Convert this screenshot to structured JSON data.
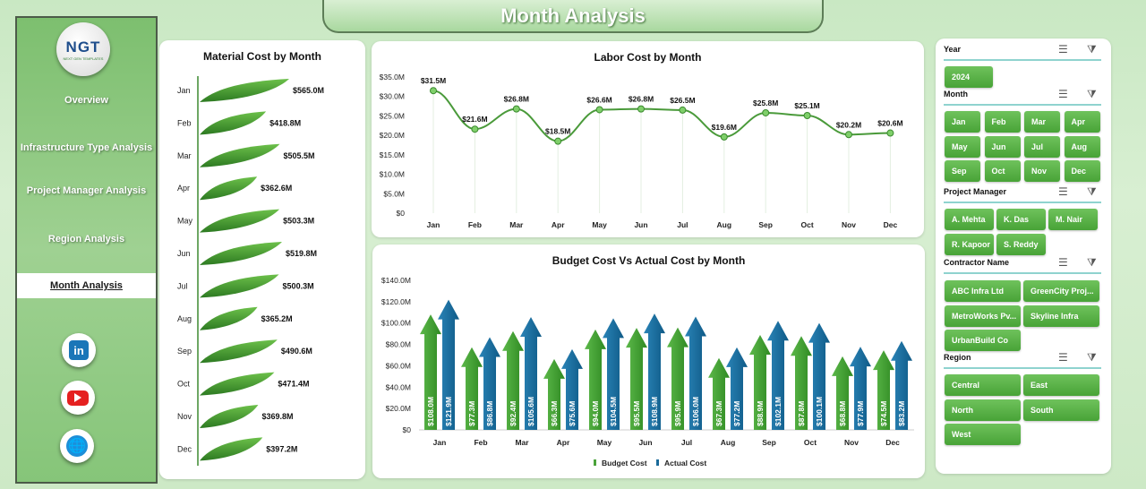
{
  "title": "Month Analysis",
  "logo": {
    "text": "NGT",
    "subtext": "NEXT GEN TEMPLATES"
  },
  "nav": [
    {
      "label": "Overview"
    },
    {
      "label": "Infrastructure Type Analysis"
    },
    {
      "label": "Project Manager Analysis"
    },
    {
      "label": "Region Analysis"
    },
    {
      "label": "Month Analysis",
      "active": true
    }
  ],
  "social": [
    "linkedin-icon",
    "youtube-icon",
    "website-icon"
  ],
  "colors": {
    "green": "#4aa33a",
    "blue": "#1a6a9a",
    "leaf": "#3d9a2e"
  },
  "chart_data": [
    {
      "type": "bar",
      "title": "Material Cost by Month",
      "categories": [
        "Jan",
        "Feb",
        "Mar",
        "Apr",
        "May",
        "Jun",
        "Jul",
        "Aug",
        "Sep",
        "Oct",
        "Nov",
        "Dec"
      ],
      "values": [
        565.0,
        418.8,
        505.5,
        362.6,
        503.3,
        519.8,
        500.3,
        365.2,
        490.6,
        471.4,
        369.8,
        397.2
      ],
      "labels": [
        "$565.0M",
        "$418.8M",
        "$505.5M",
        "$362.6M",
        "$503.3M",
        "$519.8M",
        "$500.3M",
        "$365.2M",
        "$490.6M",
        "$471.4M",
        "$369.8M",
        "$397.2M"
      ],
      "unit": "$M"
    },
    {
      "type": "line",
      "title": "Labor Cost by Month",
      "categories": [
        "Jan",
        "Feb",
        "Mar",
        "Apr",
        "May",
        "Jun",
        "Jul",
        "Aug",
        "Sep",
        "Oct",
        "Nov",
        "Dec"
      ],
      "values": [
        31.5,
        21.6,
        26.8,
        18.5,
        26.6,
        26.8,
        26.5,
        19.6,
        25.8,
        25.1,
        20.2,
        20.6
      ],
      "labels": [
        "$31.5M",
        "$21.6M",
        "$26.8M",
        "$18.5M",
        "$26.6M",
        "$26.8M",
        "$26.5M",
        "$19.6M",
        "$25.8M",
        "$25.1M",
        "$20.2M",
        "$20.6M"
      ],
      "ylim": [
        0,
        35
      ],
      "yticks": [
        "$0",
        "$5.0M",
        "$10.0M",
        "$15.0M",
        "$20.0M",
        "$25.0M",
        "$30.0M",
        "$35.0M"
      ]
    },
    {
      "type": "bar",
      "title": "Budget Cost Vs Actual Cost by Month",
      "categories": [
        "Jan",
        "Feb",
        "Mar",
        "Apr",
        "May",
        "Jun",
        "Jul",
        "Aug",
        "Sep",
        "Oct",
        "Nov",
        "Dec"
      ],
      "ylim": [
        0,
        140
      ],
      "yticks": [
        "$0",
        "$20.0M",
        "$40.0M",
        "$60.0M",
        "$80.0M",
        "$100.0M",
        "$120.0M",
        "$140.0M"
      ],
      "series": [
        {
          "name": "Budget Cost",
          "values": [
            108.0,
            77.3,
            92.4,
            66.3,
            94.0,
            95.5,
            95.9,
            67.3,
            88.9,
            87.8,
            68.8,
            74.5
          ],
          "labels": [
            "$108.0M",
            "$77.3M",
            "$92.4M",
            "$66.3M",
            "$94.0M",
            "$95.5M",
            "$95.9M",
            "$67.3M",
            "$88.9M",
            "$87.8M",
            "$68.8M",
            "$74.5M"
          ]
        },
        {
          "name": "Actual Cost",
          "values": [
            121.9,
            86.8,
            105.6,
            75.6,
            104.5,
            108.9,
            106.0,
            77.2,
            102.1,
            100.1,
            77.9,
            83.2
          ],
          "labels": [
            "$121.9M",
            "$86.8M",
            "$105.6M",
            "$75.6M",
            "$104.5M",
            "$108.9M",
            "$106.0M",
            "$77.2M",
            "$102.1M",
            "$100.1M",
            "$77.9M",
            "$83.2M"
          ]
        }
      ],
      "legend": "bottom"
    }
  ],
  "slicers": {
    "year": {
      "title": "Year",
      "items": [
        "2024"
      ]
    },
    "month": {
      "title": "Month",
      "items": [
        "Jan",
        "Feb",
        "Mar",
        "Apr",
        "May",
        "Jun",
        "Jul",
        "Aug",
        "Sep",
        "Oct",
        "Nov",
        "Dec"
      ]
    },
    "manager": {
      "title": "Project Manager",
      "items": [
        "A. Mehta",
        "K. Das",
        "M. Nair",
        "R. Kapoor",
        "S. Reddy"
      ]
    },
    "contractor": {
      "title": "Contractor Name",
      "items": [
        "ABC Infra Ltd",
        "GreenCity Proj...",
        "MetroWorks Pv...",
        "Skyline Infra",
        "UrbanBuild Co"
      ]
    },
    "region": {
      "title": "Region",
      "items": [
        "Central",
        "East",
        "North",
        "South",
        "West"
      ]
    }
  }
}
